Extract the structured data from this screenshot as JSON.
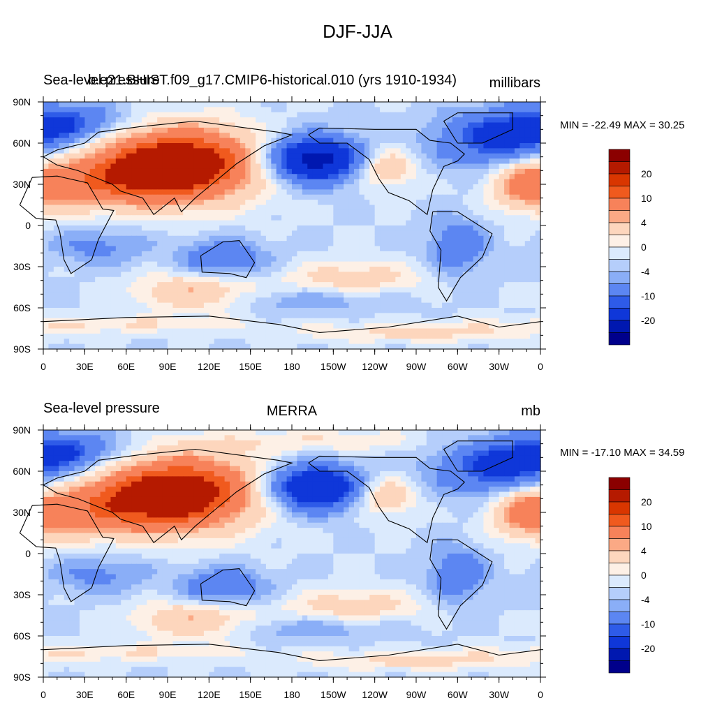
{
  "title": "DJF-JJA",
  "panels": [
    {
      "left_label": "Sea-level pressure",
      "center_label": "b.e21.BHIST.f09_g17.CMIP6-historical.010 (yrs 1910-1934)",
      "right_label": "millibars",
      "stats": "MIN = -22.49 MAX =  30.25"
    },
    {
      "left_label": "Sea-level pressure",
      "center_label": "MERRA",
      "right_label": "mb",
      "stats": "MIN = -17.10 MAX =  34.59"
    }
  ],
  "x_ticks": [
    "0",
    "30E",
    "60E",
    "90E",
    "120E",
    "150E",
    "180",
    "150W",
    "120W",
    "90W",
    "60W",
    "30W",
    "0"
  ],
  "y_ticks": [
    "90N",
    "60N",
    "30N",
    "0",
    "30S",
    "60S",
    "90S"
  ],
  "colorbar": {
    "labels": [
      "20",
      "10",
      "4",
      "0",
      "-4",
      "-10",
      "-20"
    ],
    "colors": [
      "#8b0000",
      "#b51a00",
      "#d93600",
      "#f05a1e",
      "#f7825a",
      "#fba985",
      "#fdd6bd",
      "#fdf0e6",
      "#dbeafd",
      "#b5cefb",
      "#8aaef7",
      "#5c86f2",
      "#2e5be8",
      "#0f37d9",
      "#0018b0",
      "#00008b"
    ]
  },
  "chart_data": {
    "type": "heatmap",
    "variable": "Sea-level pressure",
    "season": "DJF-JJA",
    "contour_levels": [
      -20,
      -16,
      -10,
      -8,
      -4,
      -2,
      0,
      2,
      4,
      8,
      10,
      16,
      20
    ],
    "maps": [
      {
        "name": "b.e21.BHIST.f09_g17.CMIP6-historical.010 (yrs 1910-1934)",
        "units": "millibars",
        "min": -22.49,
        "max": 30.25
      },
      {
        "name": "MERRA",
        "units": "mb",
        "min": -17.1,
        "max": 34.59
      }
    ]
  }
}
